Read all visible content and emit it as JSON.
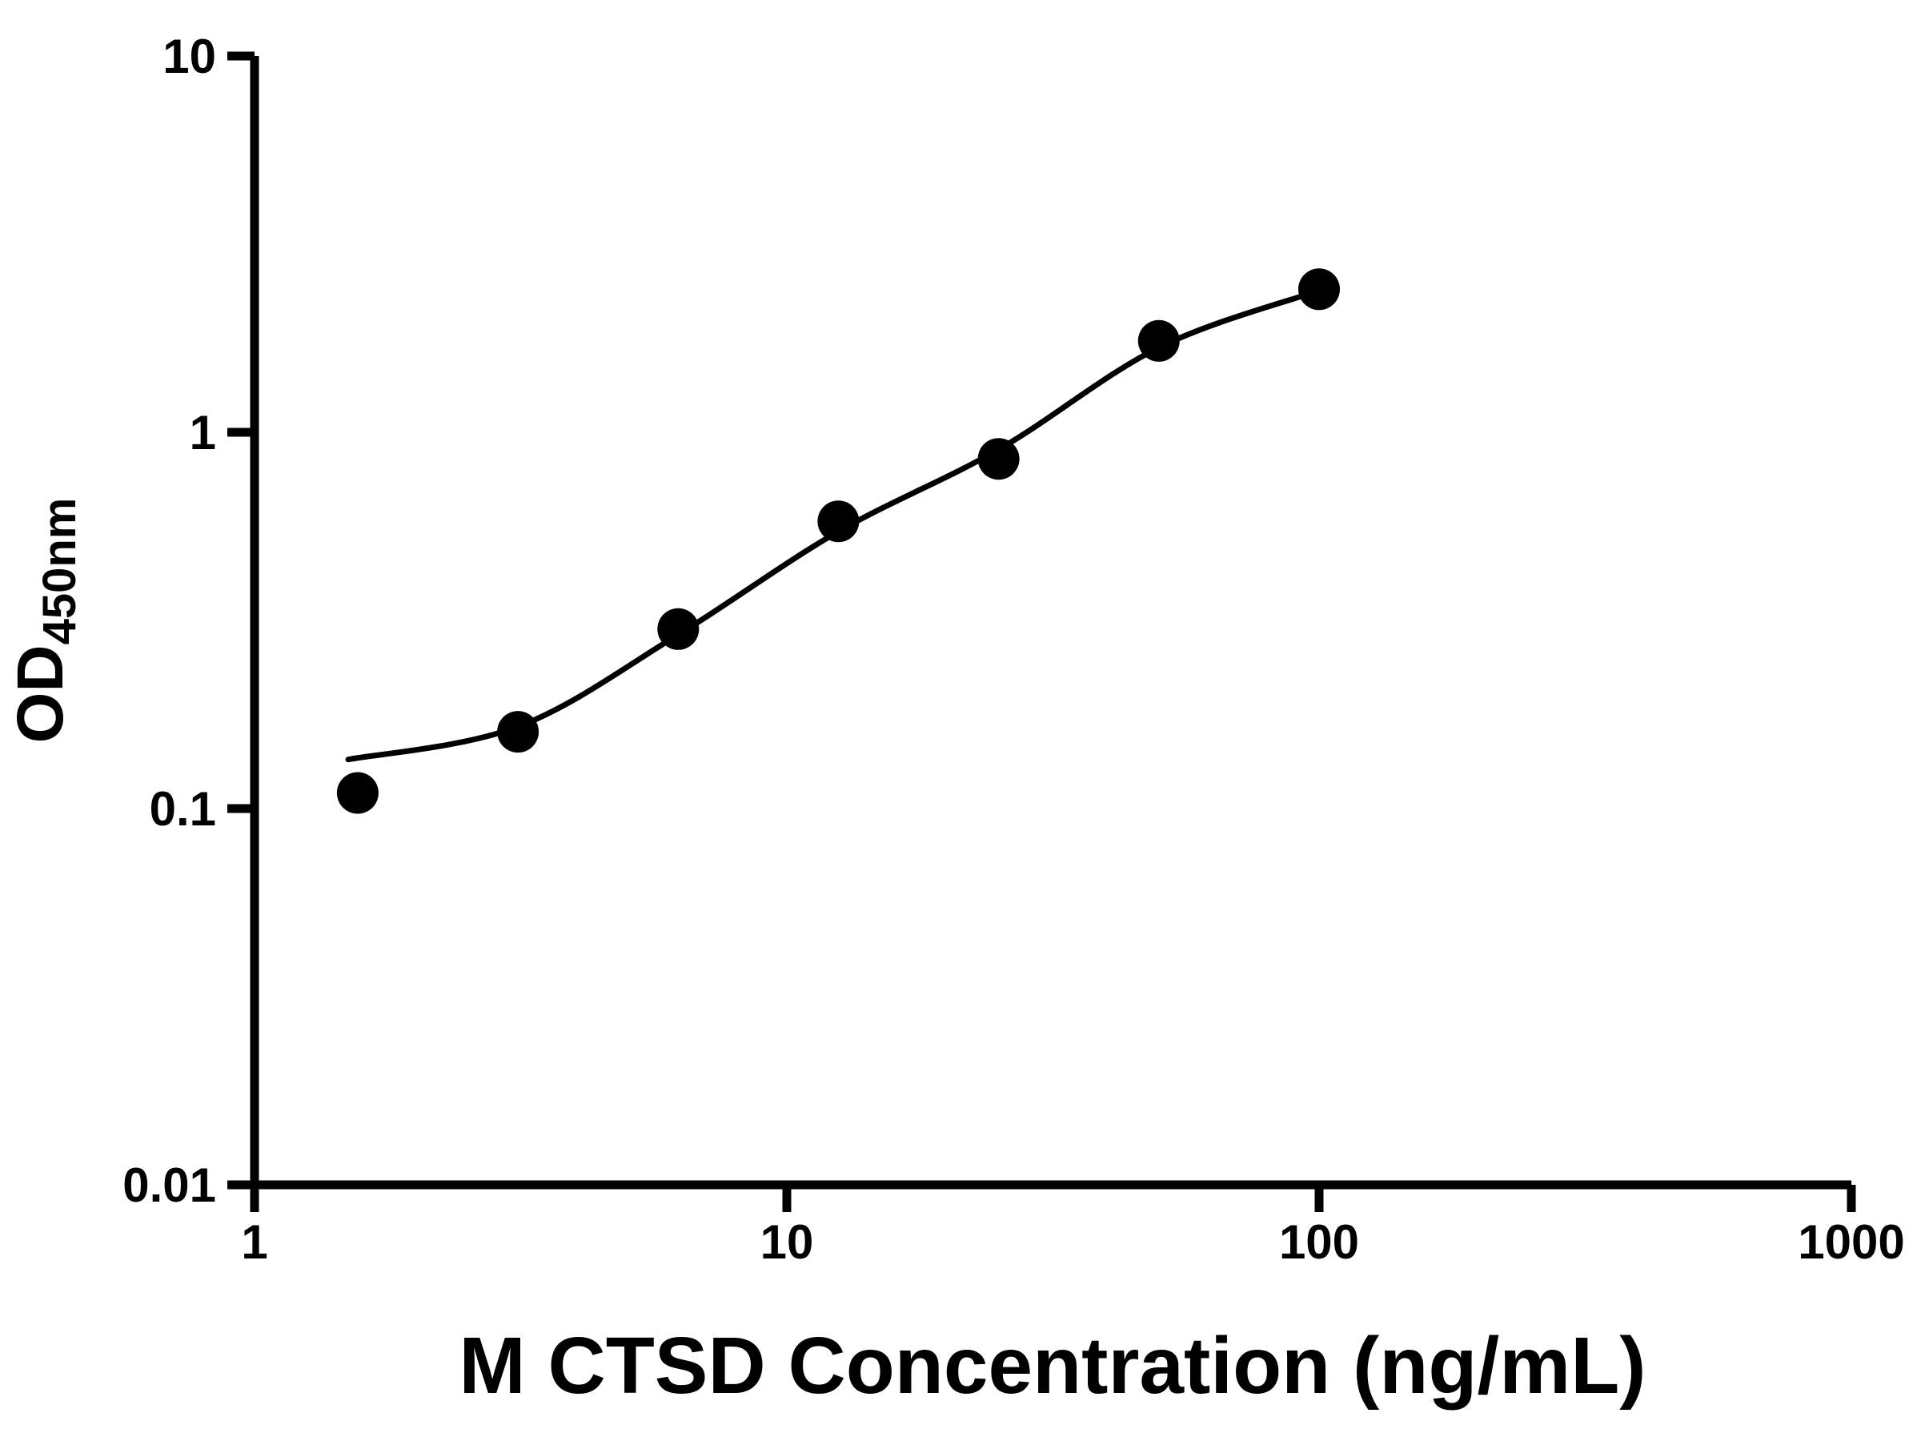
{
  "chart_data": {
    "type": "scatter",
    "title": "",
    "xlabel": "M CTSD Concentration (ng/mL)",
    "ylabel_main": "OD",
    "ylabel_sub": "450nm",
    "x_scale": "log",
    "y_scale": "log",
    "xlim": [
      1,
      1000
    ],
    "ylim": [
      0.01,
      10
    ],
    "grid": false,
    "legend": "none",
    "x_ticks": [
      {
        "value": 1,
        "label": "1"
      },
      {
        "value": 10,
        "label": "10"
      },
      {
        "value": 100,
        "label": "100"
      },
      {
        "value": 1000,
        "label": "1000"
      }
    ],
    "y_ticks": [
      {
        "value": 10,
        "label": "10"
      },
      {
        "value": 1,
        "label": "1"
      },
      {
        "value": 0.1,
        "label": "0.1"
      },
      {
        "value": 0.01,
        "label": "0.01"
      }
    ],
    "points": [
      {
        "x": 1.5625,
        "y": 0.11
      },
      {
        "x": 3.125,
        "y": 0.16
      },
      {
        "x": 6.25,
        "y": 0.3
      },
      {
        "x": 12.5,
        "y": 0.58
      },
      {
        "x": 25,
        "y": 0.85
      },
      {
        "x": 50,
        "y": 1.75
      },
      {
        "x": 100,
        "y": 2.4
      }
    ],
    "fit_curve": [
      [
        1.5,
        0.135
      ],
      [
        3.125,
        0.165
      ],
      [
        6.25,
        0.29
      ],
      [
        12.5,
        0.545
      ],
      [
        25,
        0.9
      ],
      [
        50,
        1.68
      ],
      [
        100,
        2.38
      ]
    ],
    "colors": {
      "point": "#000000",
      "curve": "#000000",
      "axis": "#000000",
      "background": "#ffffff"
    }
  }
}
